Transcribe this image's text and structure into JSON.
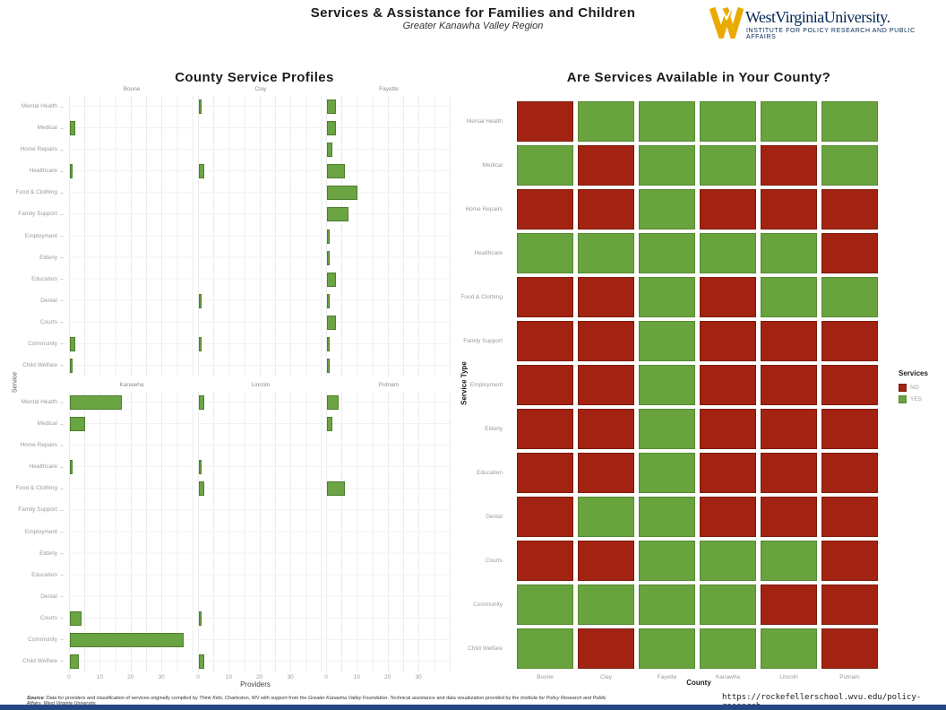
{
  "header": {
    "title": "Services & Assistance for Families and Children",
    "subtitle": "Greater Kanawha Valley Region",
    "logo": {
      "org": "West Virginia University.",
      "institute": "INSTITUTE FOR POLICY RESEARCH AND PUBLIC AFFAIRS",
      "gold": "#EAAA00",
      "navy": "#002855"
    }
  },
  "chart_data": [
    {
      "type": "bar",
      "title": "County Service Profiles",
      "xlabel": "Providers",
      "ylabel": "Service",
      "orientation": "horizontal",
      "grid": true,
      "x_ticks": [
        0,
        10,
        20,
        30
      ],
      "xlim": [
        0,
        40
      ],
      "facet_layout": [
        [
          "Boone",
          "Clay",
          "Fayette"
        ],
        [
          "Kanawha",
          "Lincoln",
          "Putnam"
        ]
      ],
      "categories": [
        "Mental Health",
        "Medical",
        "Home Repairs",
        "Healthcare",
        "Food & Clothing",
        "Family Support",
        "Employment",
        "Elderly",
        "Education",
        "Dental",
        "Courts",
        "Community",
        "Child Welfare"
      ],
      "series": [
        {
          "name": "Boone",
          "values": [
            0,
            2,
            0,
            1,
            0,
            0,
            0,
            0,
            0,
            0,
            0,
            2,
            1
          ]
        },
        {
          "name": "Clay",
          "values": [
            1,
            0,
            0,
            2,
            0,
            0,
            0,
            0,
            0,
            1,
            0,
            1,
            0
          ]
        },
        {
          "name": "Fayette",
          "values": [
            3,
            3,
            2,
            6,
            10,
            7,
            1,
            1,
            3,
            1,
            3,
            1,
            1
          ]
        },
        {
          "name": "Kanawha",
          "values": [
            17,
            5,
            0,
            1,
            0,
            0,
            0,
            0,
            0,
            0,
            4,
            37,
            3
          ]
        },
        {
          "name": "Lincoln",
          "values": [
            2,
            0,
            0,
            1,
            2,
            0,
            0,
            0,
            0,
            0,
            1,
            0,
            2
          ]
        },
        {
          "name": "Putnam",
          "values": [
            4,
            2,
            0,
            0,
            6,
            0,
            0,
            0,
            0,
            0,
            0,
            0,
            0
          ]
        }
      ],
      "bar_color": "#6BA443",
      "bar_border_color": "#4E7D2E"
    },
    {
      "type": "heatmap",
      "title": "Are Services Available in Your County?",
      "xlabel": "County",
      "ylabel": "Service Type",
      "columns": [
        "Boone",
        "Clay",
        "Fayette",
        "Kanawha",
        "Lincoln",
        "Putnam"
      ],
      "rows": [
        "Mental Health",
        "Medical",
        "Home Repairs",
        "Healthcare",
        "Food & Clothing",
        "Family Support",
        "Employment",
        "Elderly",
        "Education",
        "Dental",
        "Courts",
        "Community",
        "Child Welfare"
      ],
      "values": [
        [
          "NO",
          "YES",
          "YES",
          "YES",
          "YES",
          "YES"
        ],
        [
          "YES",
          "NO",
          "YES",
          "YES",
          "NO",
          "YES"
        ],
        [
          "NO",
          "NO",
          "YES",
          "NO",
          "NO",
          "NO"
        ],
        [
          "YES",
          "YES",
          "YES",
          "YES",
          "YES",
          "NO"
        ],
        [
          "NO",
          "NO",
          "YES",
          "NO",
          "YES",
          "YES"
        ],
        [
          "NO",
          "NO",
          "YES",
          "NO",
          "NO",
          "NO"
        ],
        [
          "NO",
          "NO",
          "YES",
          "NO",
          "NO",
          "NO"
        ],
        [
          "NO",
          "NO",
          "YES",
          "NO",
          "NO",
          "NO"
        ],
        [
          "NO",
          "NO",
          "YES",
          "NO",
          "NO",
          "NO"
        ],
        [
          "NO",
          "YES",
          "YES",
          "NO",
          "NO",
          "NO"
        ],
        [
          "NO",
          "NO",
          "YES",
          "YES",
          "YES",
          "NO"
        ],
        [
          "YES",
          "YES",
          "YES",
          "YES",
          "NO",
          "NO"
        ],
        [
          "YES",
          "NO",
          "YES",
          "YES",
          "YES",
          "NO"
        ]
      ],
      "legend": {
        "title": "Services",
        "position": "right",
        "items": [
          {
            "label": "NO",
            "color": "#A32313",
            "border": "#7E1A0B"
          },
          {
            "label": "YES",
            "color": "#69A33E",
            "border": "#568A31"
          }
        ]
      }
    }
  ],
  "footer": {
    "source": {
      "s0": "Source",
      "s1": ": Data for providers and classification of services originally compiled by ",
      "s2": "Think Kids",
      "s3": ", Charleston, WV with support from the ",
      "s4": "Greater Kanawha Valley Foundation",
      "s5": ". Technical assistance and data visualization provided by the ",
      "s6": "Institute for Policy Research and Public Affairs, West Virginia University."
    },
    "url": "https://rockefellerschool.wvu.edu/policy-research"
  }
}
